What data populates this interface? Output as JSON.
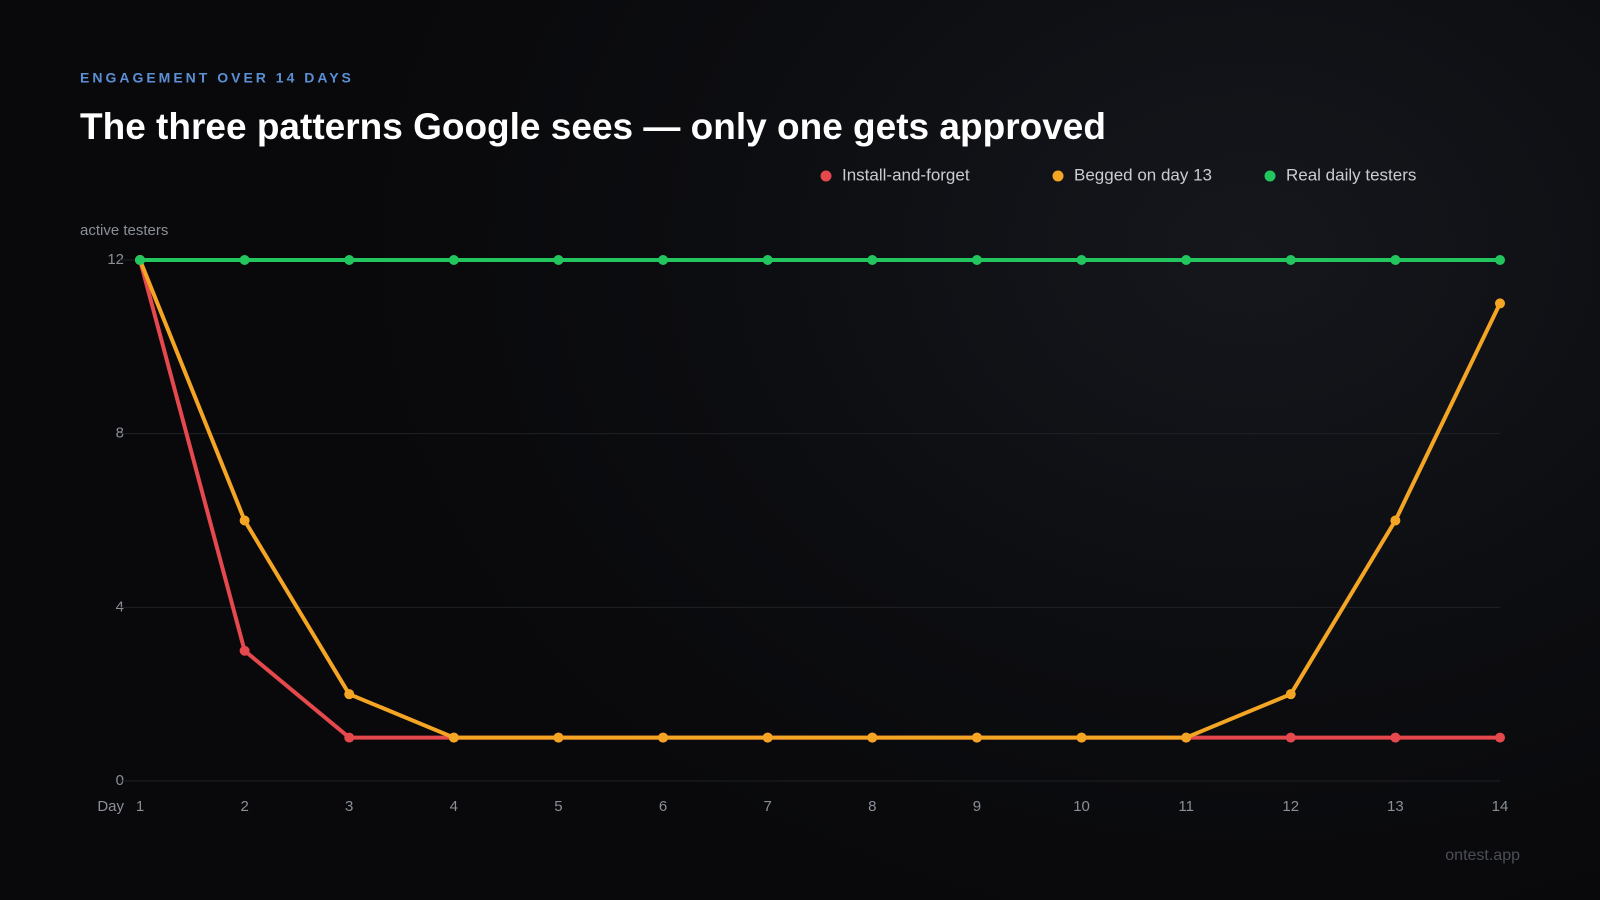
{
  "eyebrow": "ENGAGEMENT OVER 14 DAYS",
  "footer": "ontest.app",
  "chart_data": {
    "type": "line",
    "title": "The three patterns Google sees — only one gets approved",
    "y_label": "active testers",
    "x_label": "Day",
    "x": [
      1,
      2,
      3,
      4,
      5,
      6,
      7,
      8,
      9,
      10,
      11,
      12,
      13,
      14
    ],
    "xlim": [
      1,
      14
    ],
    "xticks": [
      1,
      2,
      3,
      4,
      5,
      6,
      7,
      8,
      9,
      10,
      11,
      12,
      13,
      14
    ],
    "ylim": [
      0,
      12
    ],
    "yticks": [
      0,
      4,
      8,
      12
    ],
    "grid": true,
    "legend": "top-right",
    "series": [
      {
        "name": "Install-and-forget",
        "color": "#e5484d",
        "values": [
          12,
          3,
          1,
          1,
          1,
          1,
          1,
          1,
          1,
          1,
          1,
          1,
          1,
          1
        ]
      },
      {
        "name": "Begged on day 13",
        "color": "#f5a524",
        "values": [
          12,
          6,
          2,
          1,
          1,
          1,
          1,
          1,
          1,
          1,
          1,
          2,
          6,
          11
        ]
      },
      {
        "name": "Real daily testers",
        "color": "#22c55e",
        "values": [
          12,
          12,
          12,
          12,
          12,
          12,
          12,
          12,
          12,
          12,
          12,
          12,
          12,
          12
        ]
      }
    ]
  }
}
